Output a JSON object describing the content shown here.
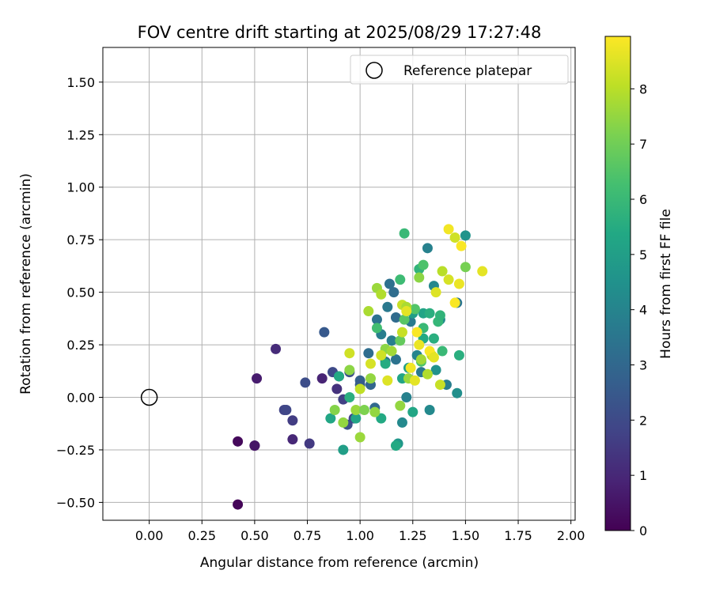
{
  "chart_data": {
    "type": "scatter",
    "title": "FOV centre drift starting at 2025/08/29 17:27:48",
    "xlabel": "Angular distance from reference (arcmin)",
    "ylabel": "Rotation from reference (arcmin)",
    "xlim": [
      -0.22,
      2.02
    ],
    "ylim": [
      -0.585,
      1.665
    ],
    "xticks": [
      0.0,
      0.25,
      0.5,
      0.75,
      1.0,
      1.25,
      1.5,
      1.75,
      2.0
    ],
    "xtick_labels": [
      "0.00",
      "0.25",
      "0.50",
      "0.75",
      "1.00",
      "1.25",
      "1.50",
      "1.75",
      "2.00"
    ],
    "yticks": [
      -0.5,
      -0.25,
      0.0,
      0.25,
      0.5,
      0.75,
      1.0,
      1.25,
      1.5
    ],
    "ytick_labels": [
      "−0.50",
      "−0.25",
      "0.00",
      "0.25",
      "0.50",
      "0.75",
      "1.00",
      "1.25",
      "1.50"
    ],
    "grid": true,
    "legend": {
      "placement": "top-right",
      "entries": [
        "Reference platepar"
      ]
    },
    "reference_point": {
      "name": "Reference platepar",
      "x": 0.0,
      "y": 0.0
    },
    "colorbar": {
      "label": "Hours from first FF file",
      "colormap": "viridis",
      "range": [
        0,
        8.95
      ],
      "ticks": [
        0,
        1,
        2,
        3,
        4,
        5,
        6,
        7,
        8
      ],
      "tick_labels": [
        "0",
        "1",
        "2",
        "3",
        "4",
        "5",
        "6",
        "7",
        "8"
      ]
    },
    "points": [
      {
        "x": 0.42,
        "y": -0.51,
        "h": 0.1
      },
      {
        "x": 0.42,
        "y": -0.21,
        "h": 0.2
      },
      {
        "x": 0.5,
        "y": -0.23,
        "h": 0.4
      },
      {
        "x": 0.5,
        "y": -0.23,
        "h": 0.5
      },
      {
        "x": 0.51,
        "y": 0.09,
        "h": 0.7
      },
      {
        "x": 0.6,
        "y": 0.23,
        "h": 1.1
      },
      {
        "x": 0.64,
        "y": -0.06,
        "h": 1.8
      },
      {
        "x": 0.65,
        "y": -0.06,
        "h": 1.9
      },
      {
        "x": 0.68,
        "y": -0.11,
        "h": 1.6
      },
      {
        "x": 0.68,
        "y": -0.2,
        "h": 1.0
      },
      {
        "x": 0.74,
        "y": 0.07,
        "h": 2.1
      },
      {
        "x": 0.76,
        "y": -0.22,
        "h": 1.5
      },
      {
        "x": 0.82,
        "y": 0.09,
        "h": 0.9
      },
      {
        "x": 0.83,
        "y": 0.31,
        "h": 2.5
      },
      {
        "x": 0.87,
        "y": 0.12,
        "h": 2.0
      },
      {
        "x": 0.89,
        "y": 0.04,
        "h": 1.3
      },
      {
        "x": 0.9,
        "y": 0.1,
        "h": 2.4
      },
      {
        "x": 0.92,
        "y": -0.01,
        "h": 1.7
      },
      {
        "x": 0.94,
        "y": -0.13,
        "h": 2.2
      },
      {
        "x": 0.95,
        "y": 0.12,
        "h": 2.2
      },
      {
        "x": 0.97,
        "y": -0.1,
        "h": 1.8
      },
      {
        "x": 1.0,
        "y": 0.08,
        "h": 2.8
      },
      {
        "x": 1.0,
        "y": 0.06,
        "h": 2.6
      },
      {
        "x": 1.04,
        "y": 0.21,
        "h": 3.2
      },
      {
        "x": 1.05,
        "y": 0.06,
        "h": 2.9
      },
      {
        "x": 1.07,
        "y": -0.05,
        "h": 3.0
      },
      {
        "x": 1.08,
        "y": 0.37,
        "h": 3.4
      },
      {
        "x": 1.1,
        "y": 0.3,
        "h": 3.8
      },
      {
        "x": 1.12,
        "y": 0.17,
        "h": 3.3
      },
      {
        "x": 1.13,
        "y": 0.43,
        "h": 3.6
      },
      {
        "x": 1.14,
        "y": 0.54,
        "h": 3.3
      },
      {
        "x": 1.15,
        "y": 0.27,
        "h": 3.8
      },
      {
        "x": 1.16,
        "y": 0.5,
        "h": 3.2
      },
      {
        "x": 1.17,
        "y": 0.38,
        "h": 3.1
      },
      {
        "x": 1.17,
        "y": 0.18,
        "h": 3.4
      },
      {
        "x": 1.18,
        "y": -0.22,
        "h": 4.7
      },
      {
        "x": 1.2,
        "y": -0.12,
        "h": 4.2
      },
      {
        "x": 1.22,
        "y": 0.0,
        "h": 3.9
      },
      {
        "x": 1.24,
        "y": 0.36,
        "h": 3.7
      },
      {
        "x": 1.25,
        "y": 0.4,
        "h": 5.0
      },
      {
        "x": 1.27,
        "y": 0.2,
        "h": 4.0
      },
      {
        "x": 1.29,
        "y": 0.12,
        "h": 3.6
      },
      {
        "x": 1.3,
        "y": 0.4,
        "h": 5.2
      },
      {
        "x": 1.32,
        "y": 0.71,
        "h": 3.9
      },
      {
        "x": 1.33,
        "y": -0.06,
        "h": 4.2
      },
      {
        "x": 1.35,
        "y": 0.53,
        "h": 4.1
      },
      {
        "x": 1.36,
        "y": 0.13,
        "h": 4.5
      },
      {
        "x": 1.38,
        "y": 0.37,
        "h": 4.3
      },
      {
        "x": 1.41,
        "y": 0.06,
        "h": 3.8
      },
      {
        "x": 1.46,
        "y": 0.45,
        "h": 3.5
      },
      {
        "x": 1.46,
        "y": 0.02,
        "h": 4.4
      },
      {
        "x": 1.5,
        "y": 0.77,
        "h": 4.6
      },
      {
        "x": 0.86,
        "y": -0.1,
        "h": 5.3
      },
      {
        "x": 0.92,
        "y": -0.25,
        "h": 5.0
      },
      {
        "x": 0.9,
        "y": 0.1,
        "h": 5.4
      },
      {
        "x": 0.95,
        "y": 0.0,
        "h": 5.6
      },
      {
        "x": 0.98,
        "y": -0.1,
        "h": 5.2
      },
      {
        "x": 1.1,
        "y": -0.1,
        "h": 5.4
      },
      {
        "x": 1.08,
        "y": 0.33,
        "h": 6.2
      },
      {
        "x": 1.12,
        "y": 0.16,
        "h": 5.5
      },
      {
        "x": 1.17,
        "y": -0.23,
        "h": 5.4
      },
      {
        "x": 1.2,
        "y": 0.09,
        "h": 5.2
      },
      {
        "x": 1.21,
        "y": 0.78,
        "h": 6.0
      },
      {
        "x": 1.23,
        "y": 0.14,
        "h": 5.0
      },
      {
        "x": 1.25,
        "y": -0.07,
        "h": 5.3
      },
      {
        "x": 1.26,
        "y": 0.42,
        "h": 6.5
      },
      {
        "x": 1.28,
        "y": 0.61,
        "h": 5.8
      },
      {
        "x": 1.3,
        "y": 0.63,
        "h": 6.4
      },
      {
        "x": 1.3,
        "y": 0.28,
        "h": 5.4
      },
      {
        "x": 1.33,
        "y": 0.4,
        "h": 5.6
      },
      {
        "x": 1.35,
        "y": 0.28,
        "h": 5.6
      },
      {
        "x": 1.37,
        "y": 0.36,
        "h": 5.9
      },
      {
        "x": 1.38,
        "y": 0.39,
        "h": 5.8
      },
      {
        "x": 1.39,
        "y": 0.22,
        "h": 6.0
      },
      {
        "x": 1.47,
        "y": 0.2,
        "h": 5.6
      },
      {
        "x": 1.19,
        "y": 0.56,
        "h": 6.1
      },
      {
        "x": 1.21,
        "y": 0.37,
        "h": 6.6
      },
      {
        "x": 1.29,
        "y": 0.17,
        "h": 6.4
      },
      {
        "x": 1.3,
        "y": 0.33,
        "h": 6.0
      },
      {
        "x": 1.19,
        "y": 0.27,
        "h": 6.8
      },
      {
        "x": 1.5,
        "y": 0.62,
        "h": 7.1
      },
      {
        "x": 0.88,
        "y": -0.06,
        "h": 7.3
      },
      {
        "x": 0.92,
        "y": -0.12,
        "h": 7.5
      },
      {
        "x": 0.95,
        "y": 0.13,
        "h": 7.4
      },
      {
        "x": 0.98,
        "y": -0.06,
        "h": 7.6
      },
      {
        "x": 1.0,
        "y": -0.19,
        "h": 7.6
      },
      {
        "x": 1.02,
        "y": -0.06,
        "h": 7.2
      },
      {
        "x": 1.04,
        "y": 0.41,
        "h": 7.8
      },
      {
        "x": 1.05,
        "y": 0.09,
        "h": 7.5
      },
      {
        "x": 1.07,
        "y": -0.07,
        "h": 7.5
      },
      {
        "x": 1.08,
        "y": 0.52,
        "h": 7.6
      },
      {
        "x": 1.1,
        "y": 0.49,
        "h": 7.9
      },
      {
        "x": 1.12,
        "y": 0.23,
        "h": 7.4
      },
      {
        "x": 1.15,
        "y": 0.22,
        "h": 7.7
      },
      {
        "x": 1.19,
        "y": -0.04,
        "h": 7.5
      },
      {
        "x": 1.2,
        "y": 0.44,
        "h": 8.2
      },
      {
        "x": 1.22,
        "y": 0.43,
        "h": 7.8
      },
      {
        "x": 1.23,
        "y": 0.09,
        "h": 7.6
      },
      {
        "x": 1.28,
        "y": 0.57,
        "h": 7.4
      },
      {
        "x": 1.29,
        "y": 0.18,
        "h": 7.7
      },
      {
        "x": 1.32,
        "y": 0.11,
        "h": 7.9
      },
      {
        "x": 1.34,
        "y": 0.2,
        "h": 8.1
      },
      {
        "x": 1.39,
        "y": 0.6,
        "h": 8.0
      },
      {
        "x": 1.42,
        "y": 0.56,
        "h": 8.4
      },
      {
        "x": 1.45,
        "y": 0.76,
        "h": 8.3
      },
      {
        "x": 0.95,
        "y": 0.21,
        "h": 8.3
      },
      {
        "x": 1.0,
        "y": 0.04,
        "h": 8.1
      },
      {
        "x": 1.05,
        "y": 0.16,
        "h": 8.4
      },
      {
        "x": 1.1,
        "y": 0.2,
        "h": 8.3
      },
      {
        "x": 1.13,
        "y": 0.08,
        "h": 8.5
      },
      {
        "x": 1.2,
        "y": 0.31,
        "h": 8.2
      },
      {
        "x": 1.22,
        "y": 0.41,
        "h": 8.6
      },
      {
        "x": 1.24,
        "y": 0.14,
        "h": 8.8
      },
      {
        "x": 1.26,
        "y": 0.08,
        "h": 8.6
      },
      {
        "x": 1.27,
        "y": 0.31,
        "h": 8.9
      },
      {
        "x": 1.28,
        "y": 0.25,
        "h": 8.7
      },
      {
        "x": 1.33,
        "y": 0.22,
        "h": 8.9
      },
      {
        "x": 1.35,
        "y": 0.19,
        "h": 8.6
      },
      {
        "x": 1.36,
        "y": 0.5,
        "h": 8.5
      },
      {
        "x": 1.42,
        "y": 0.8,
        "h": 8.8
      },
      {
        "x": 1.45,
        "y": 0.45,
        "h": 8.9
      },
      {
        "x": 1.47,
        "y": 0.54,
        "h": 8.7
      },
      {
        "x": 1.48,
        "y": 0.72,
        "h": 8.9
      },
      {
        "x": 1.58,
        "y": 0.6,
        "h": 8.6
      },
      {
        "x": 1.38,
        "y": 0.06,
        "h": 8.2
      }
    ]
  }
}
